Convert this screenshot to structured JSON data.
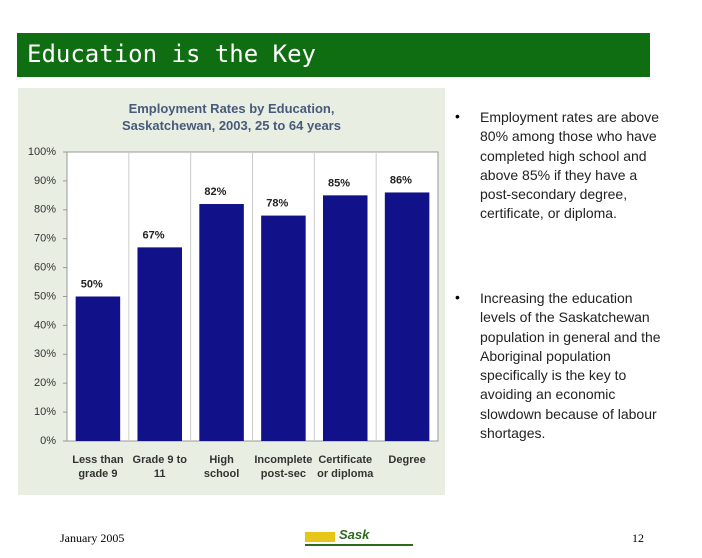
{
  "header": {
    "title": "Education is the Key"
  },
  "chart_data": {
    "type": "bar",
    "title": "Employment Rates by Education,\nSaskatchewan, 2003, 25 to 64 years",
    "categories": [
      "Less than\ngrade 9",
      "Grade 9 to\n11",
      "High\nschool",
      "Incomplete\npost-sec",
      "Certificate\nor diploma",
      "Degree"
    ],
    "values": [
      50,
      67,
      82,
      78,
      85,
      86
    ],
    "value_labels": [
      "50%",
      "67%",
      "82%",
      "78%",
      "85%",
      "86%"
    ],
    "color": "#11118a",
    "ylim": [
      0,
      100
    ],
    "yticks": [
      {
        "value": 0,
        "label": "0%"
      },
      {
        "value": 10,
        "label": "10%"
      },
      {
        "value": 20,
        "label": "20%"
      },
      {
        "value": 30,
        "label": "30%"
      },
      {
        "value": 40,
        "label": "40%"
      },
      {
        "value": 50,
        "label": "50%"
      },
      {
        "value": 60,
        "label": "60%"
      },
      {
        "value": 70,
        "label": "70%"
      },
      {
        "value": 80,
        "label": "80%"
      },
      {
        "value": 90,
        "label": "90%"
      },
      {
        "value": 100,
        "label": "100%"
      }
    ],
    "grid": false
  },
  "bullets": [
    "Employment rates are above 80% among those who have completed high school and above 85% if they have a post-secondary degree, certificate, or diploma.",
    "Increasing the education levels of the Saskatchewan population in general and the Aboriginal population specifically is the key to avoiding an economic slowdown because of labour shortages."
  ],
  "footer": {
    "date": "January 2005",
    "logo": "Sask",
    "page": "12"
  }
}
